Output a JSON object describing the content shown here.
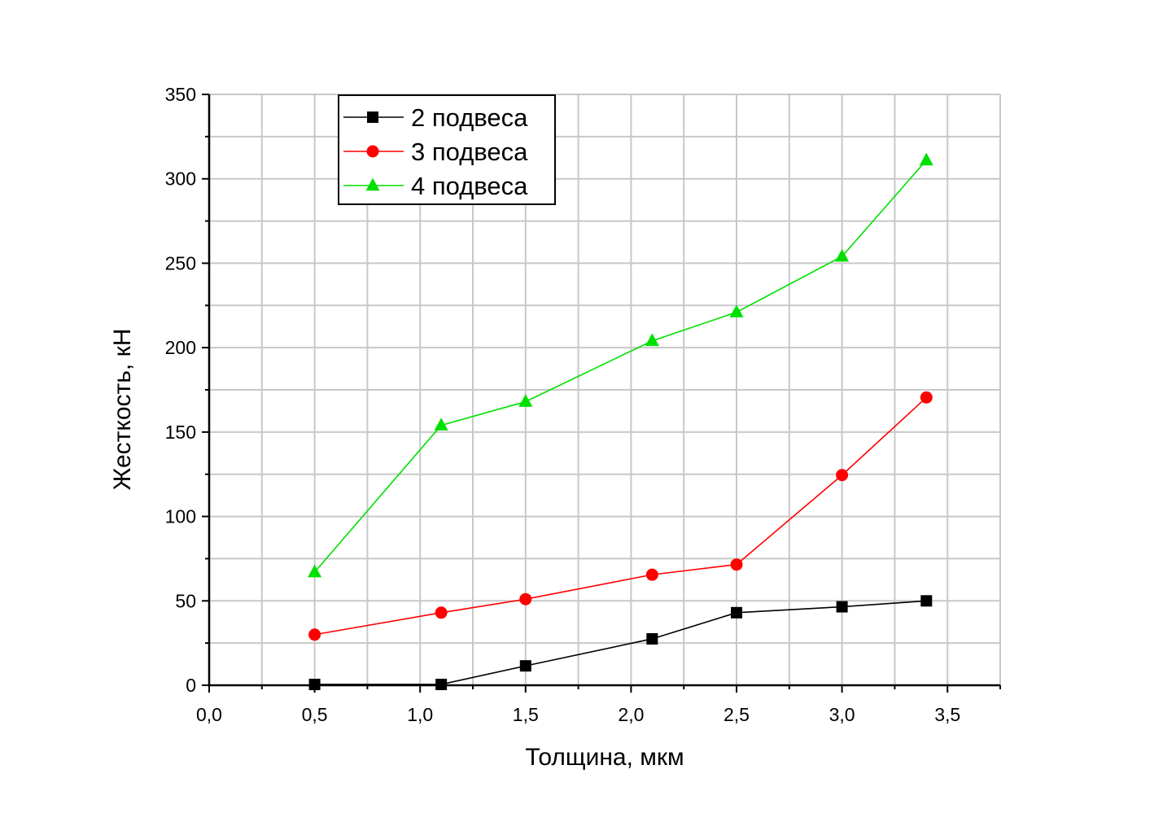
{
  "chart_data": {
    "type": "line",
    "xlabel": "Толщина, мкм",
    "ylabel": "Жесткость, кН",
    "xlim": [
      0,
      3.75
    ],
    "ylim": [
      0,
      350
    ],
    "x_ticks": [
      0,
      0.5,
      1.0,
      1.5,
      2.0,
      2.5,
      3.0,
      3.5
    ],
    "x_tick_labels": [
      "0,0",
      "0,5",
      "1,0",
      "1,5",
      "2,0",
      "2,5",
      "3,0",
      "3,5"
    ],
    "y_ticks": [
      0,
      50,
      100,
      150,
      200,
      250,
      300,
      350
    ],
    "y_tick_labels": [
      "0",
      "50",
      "100",
      "150",
      "200",
      "250",
      "300",
      "350"
    ],
    "grid": true,
    "legend_position": "top-left",
    "x": [
      0.5,
      1.1,
      1.5,
      2.1,
      2.5,
      3.0,
      3.4
    ],
    "series": [
      {
        "name": "2 подвеса",
        "color": "#000000",
        "marker": "square",
        "values": [
          0.5,
          0.5,
          11.5,
          27.5,
          43,
          46.5,
          50
        ]
      },
      {
        "name": "3 подвеса",
        "color": "#ff0000",
        "marker": "circle",
        "values": [
          30,
          43,
          51,
          65.5,
          71.5,
          124.5,
          170.5
        ]
      },
      {
        "name": "4 подвеса",
        "color": "#00e000",
        "marker": "triangle",
        "values": [
          67,
          154,
          168,
          204,
          221,
          254,
          311
        ]
      }
    ]
  }
}
